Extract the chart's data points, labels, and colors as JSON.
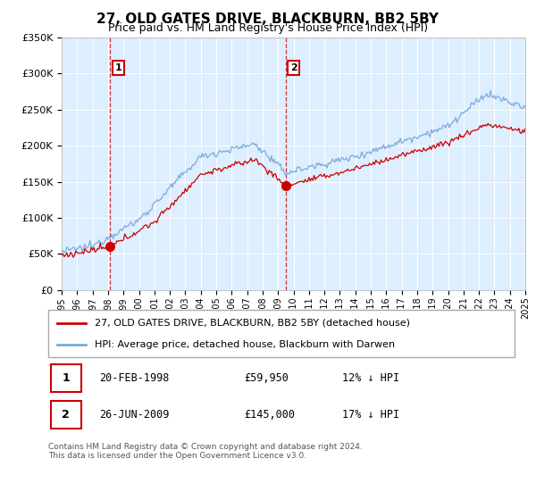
{
  "title": "27, OLD GATES DRIVE, BLACKBURN, BB2 5BY",
  "subtitle": "Price paid vs. HM Land Registry's House Price Index (HPI)",
  "hpi_label": "HPI: Average price, detached house, Blackburn with Darwen",
  "price_label": "27, OLD GATES DRIVE, BLACKBURN, BB2 5BY (detached house)",
  "transaction1_date": "20-FEB-1998",
  "transaction1_price": "£59,950",
  "transaction1_hpi": "12% ↓ HPI",
  "transaction1_year": 1998.13,
  "transaction1_value": 59950,
  "transaction2_date": "26-JUN-2009",
  "transaction2_price": "£145,000",
  "transaction2_hpi": "17% ↓ HPI",
  "transaction2_year": 2009.48,
  "transaction2_value": 145000,
  "price_color": "#cc0000",
  "hpi_color": "#7aaadd",
  "marker_color": "#cc0000",
  "vline_color": "#cc0000",
  "bg_color": "#ffffff",
  "plot_bg_color": "#ddeeff",
  "grid_color": "#ffffff",
  "ylim": [
    0,
    350000
  ],
  "yticks": [
    0,
    50000,
    100000,
    150000,
    200000,
    250000,
    300000,
    350000
  ],
  "xmin": 1995,
  "xmax": 2025,
  "footer": "Contains HM Land Registry data © Crown copyright and database right 2024.\nThis data is licensed under the Open Government Licence v3.0."
}
